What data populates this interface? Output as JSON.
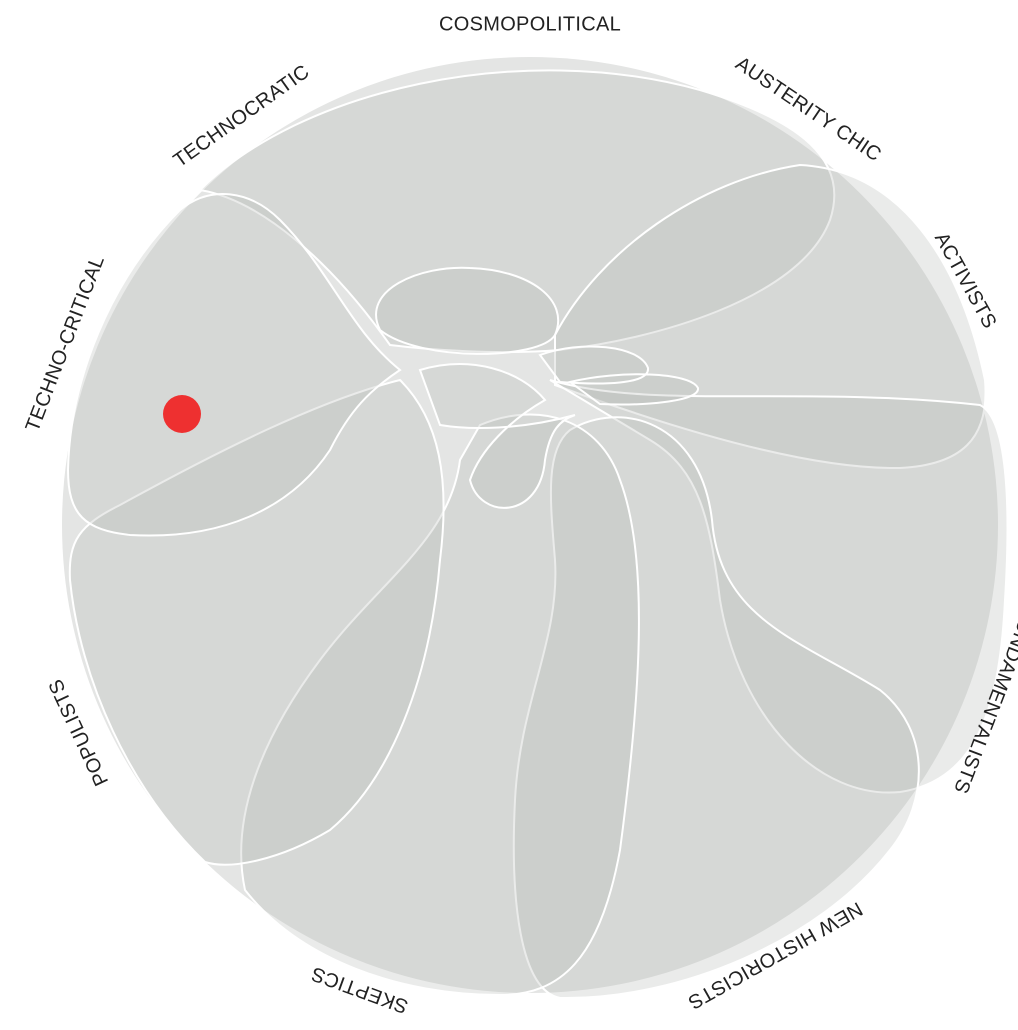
{
  "labels": [
    "COSMOPOLITICAL",
    "AUSTERITY CHIC",
    "ACTIVISTS",
    "FUNDAMENTALISTS",
    "NEW HISTORICISTS",
    "SKEPTICS",
    "POPULISTS",
    "TECHNO-CRITICAL",
    "TECHNOCRATIC"
  ]
}
